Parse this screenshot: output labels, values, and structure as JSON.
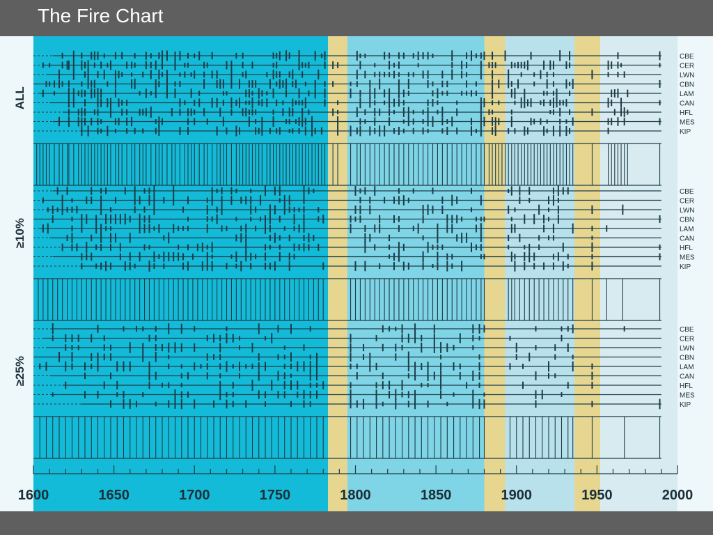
{
  "slide": {
    "title": "The Fire Chart"
  },
  "chart_data": {
    "type": "fire-history chart",
    "x_axis": {
      "range": [
        1600,
        2000
      ],
      "ticks": [
        1600,
        1650,
        1700,
        1750,
        1800,
        1850,
        1900,
        1950,
        2000
      ]
    },
    "periods": [
      {
        "start": 1600,
        "end": 1783,
        "color": "#14bbd8"
      },
      {
        "start": 1783,
        "end": 1795,
        "color": "#e6d690"
      },
      {
        "start": 1795,
        "end": 1880,
        "color": "#7fd4e6"
      },
      {
        "start": 1880,
        "end": 1893,
        "color": "#e6d690"
      },
      {
        "start": 1893,
        "end": 1936,
        "color": "#b9e1ec"
      },
      {
        "start": 1936,
        "end": 1952,
        "color": "#e6d690"
      },
      {
        "start": 1952,
        "end": 2000,
        "color": "#d8ebf1"
      }
    ],
    "sites": [
      "CBE",
      "CER",
      "LWN",
      "CBN",
      "LAM",
      "CAN",
      "HFL",
      "MES",
      "KIP"
    ],
    "site_record_start": [
      1612,
      1606,
      1608,
      1600,
      1604,
      1610,
      1618,
      1612,
      1630
    ],
    "panels": [
      {
        "label": "ALL",
        "fire_years": [
          1602,
          1604,
          1606,
          1608,
          1610,
          1613,
          1616,
          1618,
          1621,
          1622,
          1625,
          1628,
          1630,
          1632,
          1634,
          1636,
          1638,
          1640,
          1642,
          1644,
          1646,
          1648,
          1651,
          1653,
          1655,
          1658,
          1661,
          1663,
          1666,
          1668,
          1670,
          1673,
          1676,
          1678,
          1680,
          1683,
          1686,
          1688,
          1691,
          1694,
          1696,
          1698,
          1700,
          1703,
          1706,
          1708,
          1711,
          1714,
          1716,
          1718,
          1720,
          1723,
          1726,
          1728,
          1730,
          1732,
          1734,
          1736,
          1738,
          1740,
          1742,
          1745,
          1747,
          1749,
          1751,
          1753,
          1755,
          1757,
          1759,
          1761,
          1763,
          1765,
          1767,
          1769,
          1771,
          1773,
          1775,
          1777,
          1779,
          1781,
          1786,
          1789,
          1797,
          1801,
          1803,
          1806,
          1809,
          1812,
          1815,
          1818,
          1821,
          1824,
          1827,
          1830,
          1833,
          1836,
          1839,
          1842,
          1845,
          1848,
          1851,
          1854,
          1857,
          1860,
          1863,
          1866,
          1869,
          1872,
          1875,
          1878,
          1880,
          1883,
          1885,
          1887,
          1889,
          1891,
          1893,
          1895,
          1897,
          1899,
          1901,
          1903,
          1905,
          1907,
          1909,
          1911,
          1913,
          1915,
          1917,
          1919,
          1921,
          1923,
          1925,
          1927,
          1929,
          1931,
          1933,
          1935,
          1947,
          1957,
          1959,
          1961,
          1963,
          1965,
          1967,
          1969,
          1989
        ]
      },
      {
        "label": "≥10%",
        "fire_years": [
          1603,
          1606,
          1609,
          1612,
          1615,
          1618,
          1621,
          1624,
          1627,
          1630,
          1633,
          1636,
          1639,
          1642,
          1645,
          1648,
          1651,
          1654,
          1657,
          1660,
          1663,
          1666,
          1669,
          1672,
          1675,
          1678,
          1681,
          1684,
          1687,
          1690,
          1693,
          1696,
          1699,
          1702,
          1705,
          1708,
          1711,
          1714,
          1717,
          1720,
          1723,
          1726,
          1729,
          1732,
          1735,
          1738,
          1741,
          1744,
          1747,
          1750,
          1753,
          1756,
          1759,
          1762,
          1765,
          1768,
          1771,
          1774,
          1777,
          1780,
          1797,
          1800,
          1803,
          1806,
          1809,
          1812,
          1815,
          1818,
          1821,
          1824,
          1827,
          1830,
          1833,
          1836,
          1839,
          1842,
          1845,
          1848,
          1851,
          1854,
          1857,
          1860,
          1863,
          1866,
          1869,
          1872,
          1875,
          1878,
          1880,
          1895,
          1897,
          1899,
          1902,
          1905,
          1908,
          1911,
          1914,
          1917,
          1920,
          1923,
          1926,
          1929,
          1932,
          1935,
          1947,
          1956,
          1966,
          1989
        ]
      },
      {
        "label": "≥25%",
        "fire_years": [
          1604,
          1608,
          1612,
          1616,
          1620,
          1624,
          1628,
          1632,
          1636,
          1640,
          1644,
          1648,
          1652,
          1656,
          1660,
          1664,
          1668,
          1672,
          1676,
          1680,
          1684,
          1688,
          1692,
          1696,
          1700,
          1704,
          1708,
          1712,
          1716,
          1720,
          1724,
          1728,
          1732,
          1736,
          1740,
          1744,
          1748,
          1752,
          1756,
          1760,
          1764,
          1768,
          1772,
          1776,
          1780,
          1797,
          1801,
          1805,
          1809,
          1813,
          1817,
          1821,
          1825,
          1829,
          1833,
          1837,
          1841,
          1845,
          1849,
          1853,
          1857,
          1861,
          1865,
          1869,
          1873,
          1877,
          1880,
          1896,
          1900,
          1904,
          1908,
          1912,
          1916,
          1920,
          1924,
          1928,
          1932,
          1935,
          1947,
          1967,
          1989
        ]
      }
    ]
  }
}
